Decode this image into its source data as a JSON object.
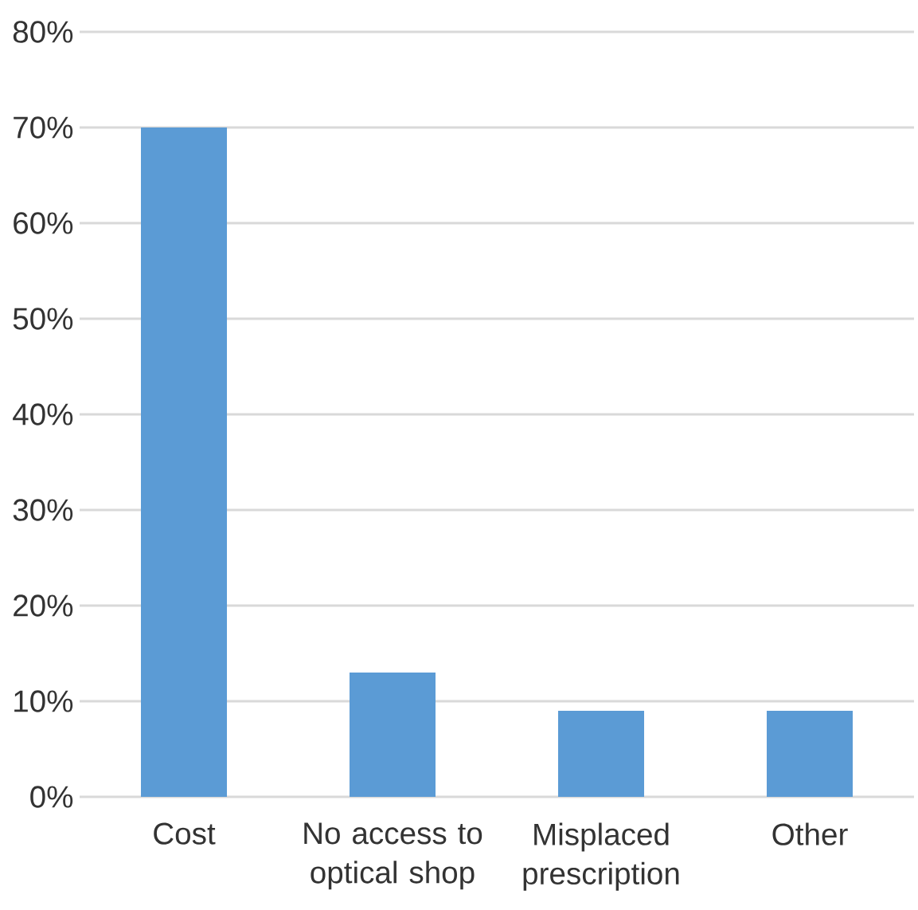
{
  "chart_data": {
    "type": "bar",
    "categories": [
      "Cost",
      "No access to optical shop",
      "Misplaced prescription",
      "Other"
    ],
    "values": [
      70,
      13,
      9,
      9
    ],
    "color": "#5b9bd5",
    "ylim": [
      0,
      80
    ],
    "yticks": [
      {
        "value": 0,
        "label": "0%"
      },
      {
        "value": 10,
        "label": "10%"
      },
      {
        "value": 20,
        "label": "20%"
      },
      {
        "value": 30,
        "label": "30%"
      },
      {
        "value": 40,
        "label": "40%"
      },
      {
        "value": 50,
        "label": "50%"
      },
      {
        "value": 60,
        "label": "60%"
      },
      {
        "value": 70,
        "label": "70%"
      },
      {
        "value": 80,
        "label": "80%"
      }
    ],
    "grid": "y"
  }
}
